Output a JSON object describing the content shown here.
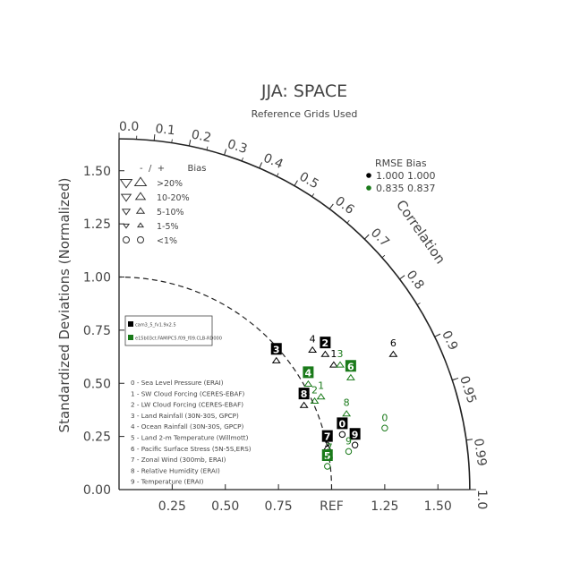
{
  "chart_data": {
    "type": "scatter",
    "title": "JJA: SPACE",
    "subtitle": "Reference Grids Used",
    "ylabel": "Standardized Deviations (Normalized)",
    "correlation_label": "Correlation",
    "ref_label": "REF",
    "std_ticks": [
      "0.00",
      "0.25",
      "0.50",
      "0.75",
      "1.00",
      "1.25",
      "1.50"
    ],
    "std_tick_values": [
      0,
      0.25,
      0.5,
      0.75,
      1.0,
      1.25,
      1.5
    ],
    "x_axis_labels": [
      "0.25",
      "0.50",
      "0.75",
      "REF",
      "1.25",
      "1.50"
    ],
    "x_axis_values": [
      0.25,
      0.5,
      0.75,
      1.0,
      1.25,
      1.5
    ],
    "corr_labels": [
      "0.0",
      "0.1",
      "0.2",
      "0.3",
      "0.4",
      "0.5",
      "0.6",
      "0.7",
      "0.8",
      "0.9",
      "0.95",
      "0.99",
      "1.0"
    ],
    "corr_values": [
      0.0,
      0.1,
      0.2,
      0.3,
      0.4,
      0.5,
      0.6,
      0.7,
      0.8,
      0.9,
      0.95,
      0.99,
      1.0
    ],
    "std_max": 1.65,
    "bias_legend": {
      "header": "-  /  +        Bias",
      "rows": [
        {
          "label": ">20%",
          "size": 4
        },
        {
          "label": "10-20%",
          "size": 3
        },
        {
          "label": "5-10%",
          "size": 2
        },
        {
          "label": "1-5%",
          "size": 1
        },
        {
          "label": "<1%",
          "size": 0
        }
      ]
    },
    "rmse_legend": {
      "header": "RMSE  Bias",
      "rows": [
        {
          "text": "1.000 1.000",
          "color": "#000000"
        },
        {
          "text": "0.835 0.837",
          "color": "#1a7a1a"
        }
      ]
    },
    "series": [
      {
        "name": "cam3_5_fv1.9x2.5",
        "color": "#000000"
      },
      {
        "name": "e15b03ct.FAMIPC5.f09_f09.CLB-RD000",
        "color": "#1a7a1a"
      }
    ],
    "variables": [
      "0 - Sea Level Pressure (ERAI)",
      "1 - SW Cloud Forcing (CERES-EBAF)",
      "2 - LW Cloud Forcing (CERES-EBAF)",
      "3 - Land Rainfall (30N-30S, GPCP)",
      "4 - Ocean Rainfall (30N-30S, GPCP)",
      "5 - Land 2-m Temperature (Willmott)",
      "6 - Pacific Surface Stress (5N-5S,ERS)",
      "7 - Zonal Wind (300mb, ERAI)",
      "8 - Relative Humidity (ERAI)",
      "9 - Temperature (ERAI)"
    ],
    "points": [
      {
        "series": 0,
        "id": "0",
        "x": 1.05,
        "y": 0.31,
        "boxed": true,
        "bias": "circle"
      },
      {
        "series": 0,
        "id": "1",
        "x": 1.01,
        "y": 0.64,
        "boxed": false,
        "bias": "up"
      },
      {
        "series": 0,
        "id": "2",
        "x": 0.97,
        "y": 0.69,
        "boxed": true,
        "bias": "up"
      },
      {
        "series": 0,
        "id": "3",
        "x": 0.74,
        "y": 0.66,
        "boxed": true,
        "bias": "up"
      },
      {
        "series": 0,
        "id": "4",
        "x": 0.91,
        "y": 0.71,
        "boxed": false,
        "bias": "up"
      },
      {
        "series": 0,
        "id": "5",
        "x": 0.98,
        "y": 0.22,
        "boxed": false,
        "bias": "up"
      },
      {
        "series": 0,
        "id": "6",
        "x": 1.29,
        "y": 0.69,
        "boxed": false,
        "bias": "up"
      },
      {
        "series": 0,
        "id": "7",
        "x": 0.98,
        "y": 0.25,
        "boxed": true,
        "bias": "up"
      },
      {
        "series": 0,
        "id": "8",
        "x": 0.87,
        "y": 0.45,
        "boxed": true,
        "bias": "up"
      },
      {
        "series": 0,
        "id": "9",
        "x": 1.11,
        "y": 0.26,
        "boxed": true,
        "bias": "circle"
      },
      {
        "series": 1,
        "id": "0",
        "x": 1.25,
        "y": 0.34,
        "boxed": false,
        "bias": "circle"
      },
      {
        "series": 1,
        "id": "1",
        "x": 0.95,
        "y": 0.49,
        "boxed": false,
        "bias": "up"
      },
      {
        "series": 1,
        "id": "2",
        "x": 0.92,
        "y": 0.47,
        "boxed": false,
        "bias": "up"
      },
      {
        "series": 1,
        "id": "3",
        "x": 1.04,
        "y": 0.64,
        "boxed": false,
        "bias": "up"
      },
      {
        "series": 1,
        "id": "4",
        "x": 0.89,
        "y": 0.55,
        "boxed": true,
        "bias": "up"
      },
      {
        "series": 1,
        "id": "5",
        "x": 0.98,
        "y": 0.16,
        "boxed": true,
        "bias": "circle"
      },
      {
        "series": 1,
        "id": "6",
        "x": 1.09,
        "y": 0.58,
        "boxed": true,
        "bias": "up"
      },
      {
        "series": 1,
        "id": "7",
        "x": 0.99,
        "y": 0.2,
        "boxed": false,
        "bias": "circle"
      },
      {
        "series": 1,
        "id": "8",
        "x": 1.07,
        "y": 0.41,
        "boxed": false,
        "bias": "up"
      },
      {
        "series": 1,
        "id": "9",
        "x": 1.08,
        "y": 0.23,
        "boxed": false,
        "bias": "circle"
      }
    ]
  }
}
